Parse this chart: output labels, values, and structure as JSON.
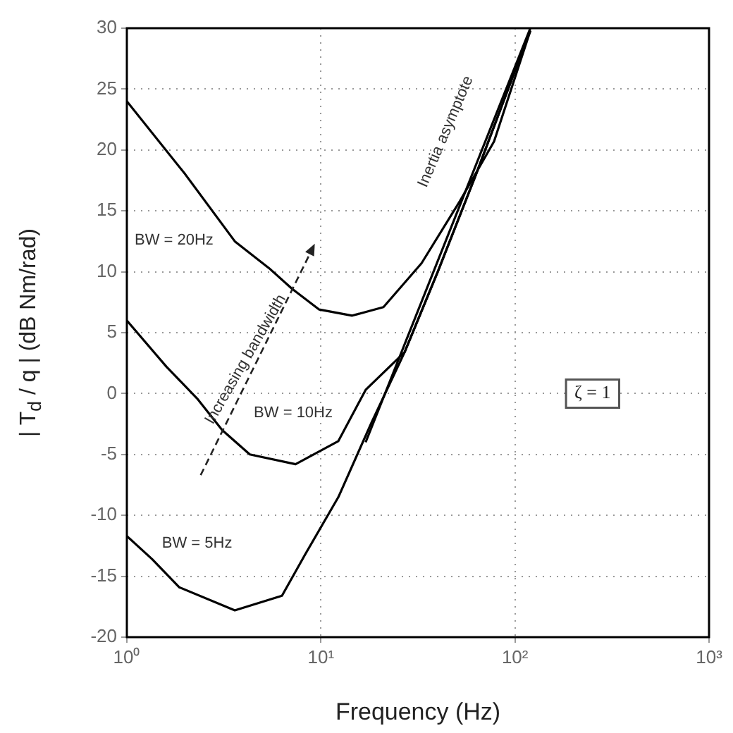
{
  "chart_data": {
    "type": "line",
    "xlabel": "Frequency (Hz)",
    "ylabel": "| T$_{d}$ / q |  (dB Nm/rad)",
    "log": "x",
    "xlim": [
      1,
      1000
    ],
    "ylim": [
      -20,
      30
    ],
    "xticks": [
      {
        "value": 1,
        "label": "10⁰"
      },
      {
        "value": 10,
        "label": "10¹"
      },
      {
        "value": 100,
        "label": "10²"
      },
      {
        "value": 1000,
        "label": "10³"
      }
    ],
    "yticks": [
      -20,
      -15,
      -10,
      -5,
      0,
      5,
      10,
      15,
      20,
      25,
      30
    ],
    "grid": true,
    "legend": false,
    "marker": "none",
    "line_style": "solid",
    "series": [
      {
        "color": "#000000",
        "x": [
          1,
          2,
          3.6,
          5.4,
          7.1,
          9.8,
          14.5,
          21,
          33,
          52,
          78,
          120
        ],
        "values": [
          24,
          18,
          12.5,
          10.3,
          8.6,
          6.9,
          6.4,
          7.1,
          10.7,
          15.8,
          20.7,
          29.8
        ]
      },
      {
        "color": "#000000",
        "x": [
          1,
          1.6,
          2.3,
          3.1,
          4.3,
          7.4,
          12.3,
          17,
          27,
          40,
          63,
          100,
          120
        ],
        "values": [
          6,
          2.2,
          -0.4,
          -3,
          -5,
          -5.8,
          -3.9,
          0.3,
          3.4,
          10,
          18,
          26.5,
          29.8
        ]
      },
      {
        "color": "#000000",
        "x": [
          1,
          1.35,
          1.86,
          3.6,
          6.3,
          8.3,
          12.3,
          18.2,
          27,
          40,
          63,
          100,
          120
        ],
        "values": [
          -11.7,
          -13.6,
          -15.9,
          -17.8,
          -16.6,
          -13.2,
          -8.5,
          -2.4,
          3.4,
          10,
          18,
          26.5,
          29.8
        ]
      },
      {
        "color": "#000000",
        "x": [
          17,
          120
        ],
        "values": [
          -4,
          30
        ]
      }
    ],
    "annotations": [
      "BW = 20Hz",
      "BW = 10Hz",
      "BW = 5Hz",
      "Increasing bandwidth",
      "Inertia asymptote",
      "ζ = 1"
    ]
  }
}
